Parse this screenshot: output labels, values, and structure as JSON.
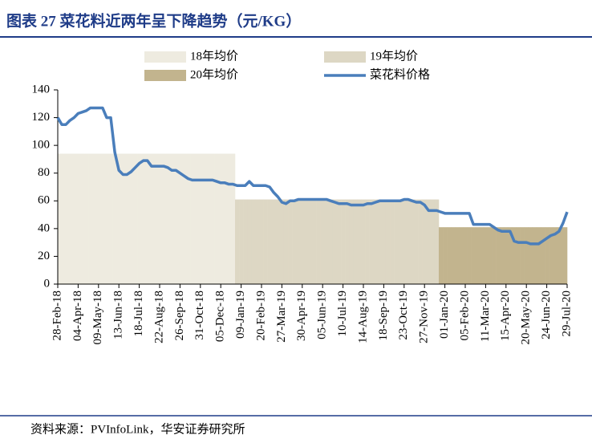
{
  "chart_data": {
    "type": "line",
    "title": "图表 27 菜花料近两年呈下降趋势（元/KG）",
    "source": "资料来源：PVInfoLink，华安证券研究所",
    "categories": [
      "28-Feb-18",
      null,
      null,
      null,
      null,
      "04-Apr-18",
      null,
      null,
      null,
      null,
      "09-May-18",
      null,
      null,
      null,
      null,
      "13-Jun-18",
      null,
      null,
      null,
      null,
      "18-Jul-18",
      null,
      null,
      null,
      null,
      "22-Aug-18",
      null,
      null,
      null,
      null,
      "26-Sep-18",
      null,
      null,
      null,
      null,
      "31-Oct-18",
      null,
      null,
      null,
      null,
      "05-Dec-18",
      null,
      null,
      null,
      null,
      "09-Jan-19",
      null,
      null,
      null,
      null,
      "20-Feb-19",
      null,
      null,
      null,
      null,
      "27-Mar-19",
      null,
      null,
      null,
      null,
      "30-Apr-19",
      null,
      null,
      null,
      null,
      "05-Jun-19",
      null,
      null,
      null,
      null,
      "10-Jul-19",
      null,
      null,
      null,
      null,
      "14-Aug-19",
      null,
      null,
      null,
      null,
      "18-Sep-19",
      null,
      null,
      null,
      null,
      "23-Oct-19",
      null,
      null,
      null,
      null,
      "27-Nov-19",
      null,
      null,
      null,
      null,
      "01-Jan-20",
      null,
      null,
      null,
      null,
      "05-Feb-20",
      null,
      null,
      null,
      null,
      "11-Mar-20",
      null,
      null,
      null,
      null,
      "15-Apr-20",
      null,
      null,
      null,
      null,
      "20-May-20",
      null,
      null,
      null,
      null,
      "24-Jun-20",
      null,
      null,
      null,
      null,
      "29-Jul-20"
    ],
    "series": [
      {
        "name": "18年均价",
        "kind": "area",
        "color": "#EEEBE0",
        "values": [
          94,
          94,
          94,
          94,
          94,
          94,
          94,
          94,
          94,
          94,
          94,
          94,
          94,
          94,
          94,
          94,
          94,
          94,
          94,
          94,
          94,
          94,
          94,
          94,
          94,
          94,
          94,
          94,
          94,
          94,
          94,
          94,
          94,
          94,
          94,
          94,
          94,
          94,
          94,
          94,
          94,
          94,
          94,
          94,
          null,
          null,
          null,
          null,
          null,
          null,
          null,
          null,
          null,
          null,
          null,
          null,
          null,
          null,
          null,
          null,
          null,
          null,
          null,
          null,
          null,
          null,
          null,
          null,
          null,
          null,
          null,
          null,
          null,
          null,
          null,
          null,
          null,
          null,
          null,
          null,
          null,
          null,
          null,
          null,
          null,
          null,
          null,
          null,
          null,
          null,
          null,
          null,
          null,
          null,
          null,
          null,
          null,
          null,
          null,
          null,
          null,
          null,
          null,
          null,
          null,
          null,
          null,
          null,
          null,
          null,
          null,
          null,
          null,
          null,
          null,
          null,
          null,
          null,
          null,
          null,
          null,
          null,
          null,
          null,
          null,
          null
        ]
      },
      {
        "name": "19年均价",
        "kind": "area",
        "color": "#DDD7C4",
        "values": [
          null,
          null,
          null,
          null,
          null,
          null,
          null,
          null,
          null,
          null,
          null,
          null,
          null,
          null,
          null,
          null,
          null,
          null,
          null,
          null,
          null,
          null,
          null,
          null,
          null,
          null,
          null,
          null,
          null,
          null,
          null,
          null,
          null,
          null,
          null,
          null,
          null,
          null,
          null,
          null,
          null,
          null,
          null,
          null,
          61,
          61,
          61,
          61,
          61,
          61,
          61,
          61,
          61,
          61,
          61,
          61,
          61,
          61,
          61,
          61,
          61,
          61,
          61,
          61,
          61,
          61,
          61,
          61,
          61,
          61,
          61,
          61,
          61,
          61,
          61,
          61,
          61,
          61,
          61,
          61,
          61,
          61,
          61,
          61,
          61,
          61,
          61,
          61,
          61,
          61,
          61,
          61,
          61,
          61,
          null,
          null,
          null,
          null,
          null,
          null,
          null,
          null,
          null,
          null,
          null,
          null,
          null,
          null,
          null,
          null,
          null,
          null,
          null,
          null,
          null,
          null,
          null,
          null,
          null,
          null,
          null,
          null,
          null,
          null,
          null,
          null
        ]
      },
      {
        "name": "20年均价",
        "kind": "area",
        "color": "#C2B48E",
        "values": [
          null,
          null,
          null,
          null,
          null,
          null,
          null,
          null,
          null,
          null,
          null,
          null,
          null,
          null,
          null,
          null,
          null,
          null,
          null,
          null,
          null,
          null,
          null,
          null,
          null,
          null,
          null,
          null,
          null,
          null,
          null,
          null,
          null,
          null,
          null,
          null,
          null,
          null,
          null,
          null,
          null,
          null,
          null,
          null,
          null,
          null,
          null,
          null,
          null,
          null,
          null,
          null,
          null,
          null,
          null,
          null,
          null,
          null,
          null,
          null,
          null,
          null,
          null,
          null,
          null,
          null,
          null,
          null,
          null,
          null,
          null,
          null,
          null,
          null,
          null,
          null,
          null,
          null,
          null,
          null,
          null,
          null,
          null,
          null,
          null,
          null,
          null,
          null,
          null,
          null,
          null,
          null,
          null,
          null,
          41,
          41,
          41,
          41,
          41,
          41,
          41,
          41,
          41,
          41,
          41,
          41,
          41,
          41,
          41,
          41,
          41,
          41,
          41,
          41,
          41,
          41,
          41,
          41,
          41,
          41,
          41,
          41,
          41,
          41,
          41,
          41
        ]
      },
      {
        "name": "菜花料价格",
        "kind": "line",
        "color": "#4A7EBB",
        "values": [
          120,
          115,
          115,
          118,
          120,
          123,
          124,
          125,
          127,
          127,
          127,
          127,
          120,
          120,
          95,
          82,
          79,
          79,
          81,
          84,
          87,
          89,
          89,
          85,
          85,
          85,
          85,
          84,
          82,
          82,
          80,
          78,
          76,
          75,
          75,
          75,
          75,
          75,
          75,
          74,
          73,
          73,
          72,
          72,
          71,
          71,
          71,
          74,
          71,
          71,
          71,
          71,
          70,
          66,
          63,
          59,
          58,
          60,
          60,
          61,
          61,
          61,
          61,
          61,
          61,
          61,
          61,
          60,
          59,
          58,
          58,
          58,
          57,
          57,
          57,
          57,
          58,
          58,
          59,
          60,
          60,
          60,
          60,
          60,
          60,
          61,
          61,
          60,
          59,
          59,
          57,
          53,
          53,
          53,
          52,
          51,
          51,
          51,
          51,
          51,
          51,
          51,
          43,
          43,
          43,
          43,
          43,
          41,
          39,
          38,
          38,
          38,
          31,
          30,
          30,
          30,
          29,
          29,
          29,
          31,
          33,
          35,
          36,
          38,
          44,
          52
        ]
      }
    ],
    "ylim": [
      0,
      140
    ],
    "yticks": [
      0,
      20,
      40,
      60,
      80,
      100,
      120,
      140
    ]
  }
}
